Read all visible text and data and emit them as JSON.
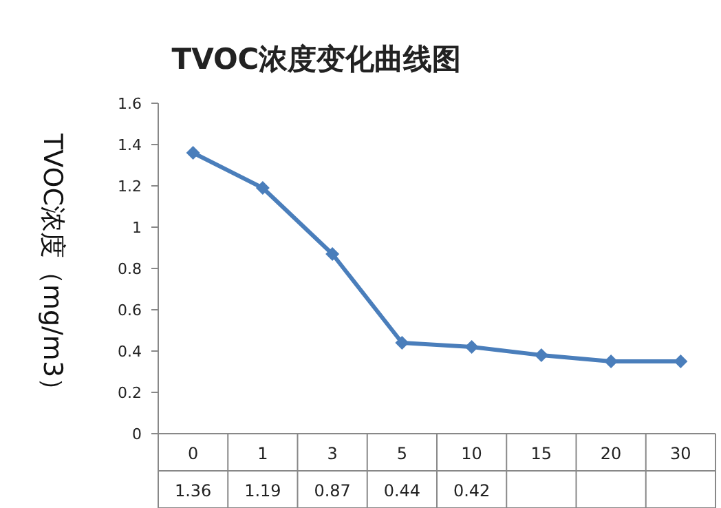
{
  "chart_data": {
    "type": "line",
    "title": "TVOC浓度变化曲线图",
    "ylabel": "TVOC浓度（mg/m3）",
    "categories": [
      "0",
      "1",
      "3",
      "5",
      "10",
      "15",
      "20",
      "30"
    ],
    "series": [
      {
        "color": "#4a7ebb",
        "values": [
          1.36,
          1.19,
          0.87,
          0.44,
          0.42,
          0.38,
          0.35,
          0.35
        ],
        "value_labels": [
          "1.36",
          "1.19",
          "0.87",
          "0.44",
          "0.42",
          null,
          null,
          null
        ]
      }
    ],
    "ylim": [
      0,
      1.6
    ],
    "yticks": [
      0,
      0.2,
      0.4,
      0.6,
      0.8,
      1,
      1.2,
      1.4,
      1.6
    ],
    "marker": "diamond",
    "line_style": "solid",
    "grid": false
  }
}
